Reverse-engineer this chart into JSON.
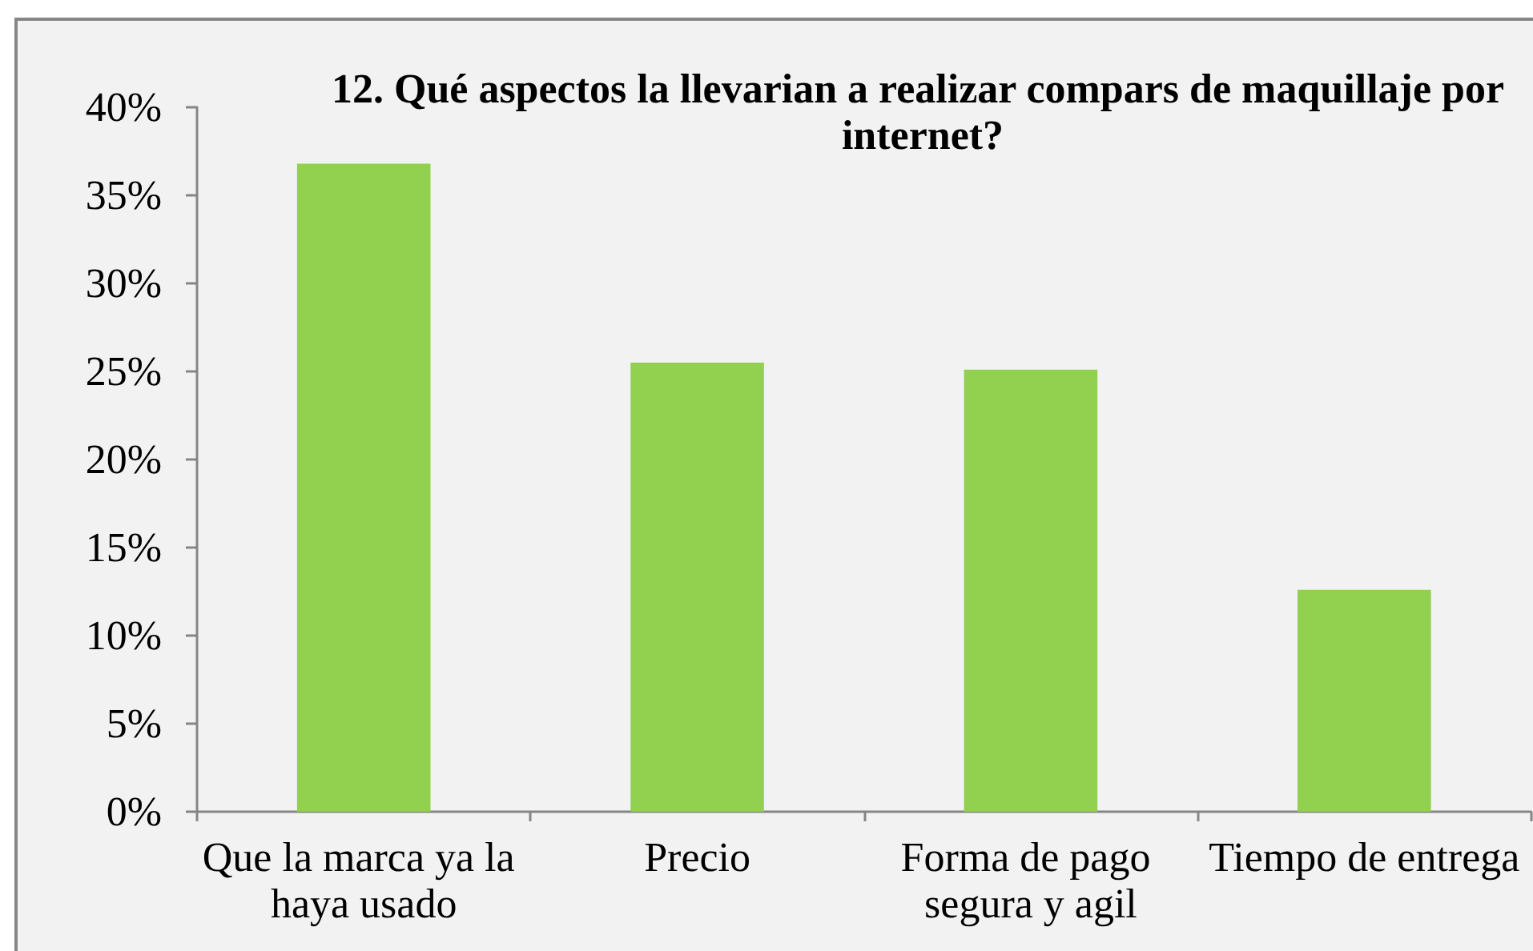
{
  "chart_data": {
    "type": "bar",
    "title": "12. Qué aspectos la llevarian a realizar compars de maquillaje por internet?",
    "categories": [
      "Que la marca ya la haya usado",
      "Precio",
      "Forma de pago segura y agil",
      "Tiempo de entrega"
    ],
    "values": [
      36.8,
      25.5,
      25.1,
      12.6
    ],
    "color": "#92d050",
    "ylim": [
      0,
      40
    ],
    "yticks": [
      {
        "value": 0,
        "label": "0%"
      },
      {
        "value": 5,
        "label": "5%"
      },
      {
        "value": 10,
        "label": "10%"
      },
      {
        "value": 15,
        "label": "15%"
      },
      {
        "value": 20,
        "label": "20%"
      },
      {
        "value": 25,
        "label": "25%"
      },
      {
        "value": 30,
        "label": "30%"
      },
      {
        "value": 35,
        "label": "35%"
      },
      {
        "value": 40,
        "label": "40%"
      }
    ]
  }
}
